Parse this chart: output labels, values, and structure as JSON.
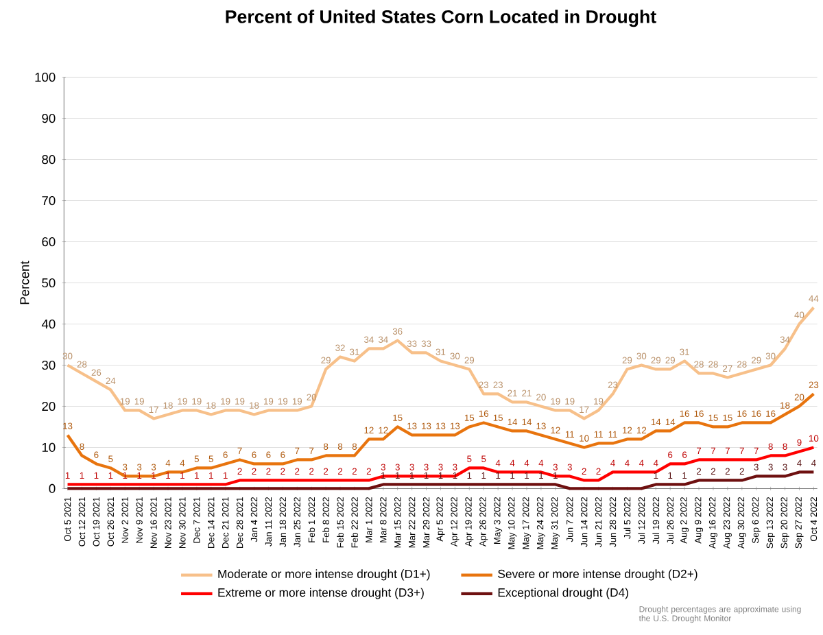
{
  "chart_data": {
    "type": "line",
    "title": "Percent of United States Corn Located in Drought",
    "ylabel": "Percent",
    "categories": [
      "Oct 5 2021",
      "Oct 12 2021",
      "Oct 19 2021",
      "Oct 26 2021",
      "Nov 2 2021",
      "Nov 9 2021",
      "Nov 16 2021",
      "Nov 23 2021",
      "Nov 30 2021",
      "Dec 7 2021",
      "Dec 14 2021",
      "Dec 21 2021",
      "Dec 28 2021",
      "Jan 4 2022",
      "Jan 11 2022",
      "Jan 18 2022",
      "Jan 25 2022",
      "Feb 1 2022",
      "Feb 8 2022",
      "Feb 15 2022",
      "Feb 22 2022",
      "Mar 1 2022",
      "Mar 8 2022",
      "Mar 15 2022",
      "Mar 22 2022",
      "Mar 29 2022",
      "Apr 5 2022",
      "Apr 12 2022",
      "Apr 19 2022",
      "Apr 26 2022",
      "May 3 2022",
      "May 10 2022",
      "May 17 2022",
      "May 24 2022",
      "May 31 2022",
      "Jun 7 2022",
      "Jun 14 2022",
      "Jun 21 2022",
      "Jun 28 2022",
      "Jul 5 2022",
      "Jul 12 2022",
      "Jul 19 2022",
      "Jul 26 2022",
      "Aug 2 2022",
      "Aug 9 2022",
      "Aug 16 2022",
      "Aug 23 2022",
      "Aug 30 2022",
      "Sep 6 2022",
      "Sep 13 2022",
      "Sep 20 2022",
      "Sep 27 2022",
      "Oct 4 2022"
    ],
    "series": [
      {
        "name": "Moderate or more intense drought (D1+)",
        "color": "#f7c08a",
        "values": [
          30,
          28,
          26,
          24,
          19,
          19,
          17,
          18,
          19,
          19,
          18,
          19,
          19,
          18,
          19,
          19,
          19,
          20,
          29,
          32,
          31,
          34,
          34,
          36,
          33,
          33,
          31,
          30,
          29,
          23,
          23,
          21,
          21,
          20,
          19,
          19,
          17,
          19,
          23,
          29,
          30,
          29,
          29,
          31,
          28,
          28,
          27,
          28,
          29,
          30,
          34,
          40,
          44
        ]
      },
      {
        "name": "Severe or more intense drought (D2+)",
        "color": "#e8740e",
        "values": [
          13,
          8,
          6,
          5,
          3,
          3,
          3,
          4,
          4,
          5,
          5,
          6,
          7,
          6,
          6,
          6,
          7,
          7,
          8,
          8,
          8,
          12,
          12,
          15,
          13,
          13,
          13,
          13,
          15,
          16,
          15,
          14,
          14,
          13,
          12,
          11,
          10,
          11,
          11,
          12,
          12,
          14,
          14,
          16,
          16,
          15,
          15,
          16,
          16,
          16,
          18,
          20,
          23
        ]
      },
      {
        "name": "Extreme or more intense drought (D3+)",
        "color": "#ff0000",
        "values": [
          1,
          1,
          1,
          1,
          1,
          1,
          1,
          1,
          1,
          1,
          1,
          1,
          2,
          2,
          2,
          2,
          2,
          2,
          2,
          2,
          2,
          2,
          3,
          3,
          3,
          3,
          3,
          3,
          5,
          5,
          4,
          4,
          4,
          4,
          3,
          3,
          2,
          2,
          4,
          4,
          4,
          4,
          6,
          6,
          7,
          7,
          7,
          7,
          7,
          8,
          8,
          9,
          10
        ]
      },
      {
        "name": "Exceptional drought (D4)",
        "color": "#6e1010",
        "values": [
          0,
          0,
          0,
          0,
          0,
          0,
          0,
          0,
          0,
          0,
          0,
          0,
          0,
          0,
          0,
          0,
          0,
          0,
          0,
          0,
          0,
          0,
          1,
          1,
          1,
          1,
          1,
          1,
          1,
          1,
          1,
          1,
          1,
          1,
          1,
          0,
          0,
          0,
          0,
          0,
          0,
          1,
          1,
          1,
          2,
          2,
          2,
          2,
          3,
          3,
          3,
          4,
          4
        ],
        "value_labels": [
          null,
          null,
          null,
          null,
          null,
          null,
          null,
          null,
          null,
          null,
          null,
          null,
          null,
          null,
          null,
          null,
          null,
          null,
          null,
          null,
          null,
          null,
          "1",
          "1",
          "1",
          "1",
          "1",
          "1",
          "1",
          "1",
          "1",
          "1",
          "1",
          "1",
          "1",
          null,
          null,
          null,
          null,
          null,
          null,
          "1",
          "1",
          "1",
          "2",
          "2",
          "2",
          "2",
          "3",
          "3",
          "3",
          "4",
          "4"
        ]
      }
    ],
    "ylim": [
      0,
      100
    ],
    "yticks": [
      0,
      10,
      20,
      30,
      40,
      50,
      60,
      70,
      80,
      90,
      100
    ],
    "grid": "y",
    "legend": "bottom",
    "marker": "none",
    "line_style": "solid",
    "data_labels": true,
    "annotations": [
      "Drought percentages are approximate using the U.S. Drought Monitor"
    ]
  }
}
